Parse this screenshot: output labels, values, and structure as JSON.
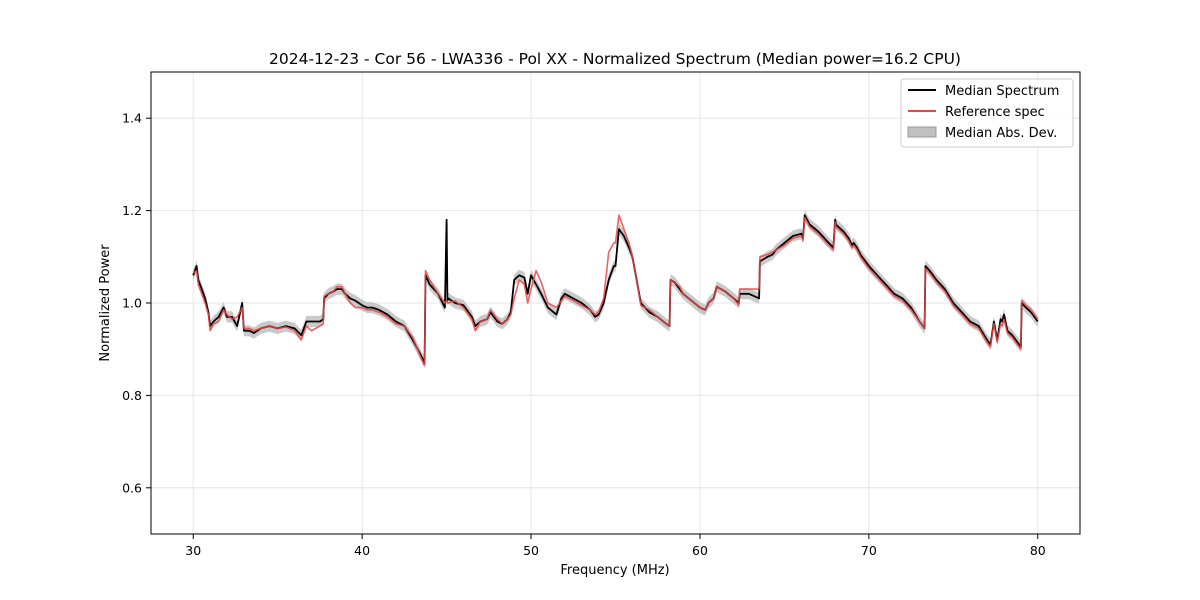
{
  "chart_data": {
    "type": "line",
    "title": "2024-12-23 - Cor 56 - LWA336 - Pol XX - Normalized Spectrum (Median power=16.2 CPU)",
    "xlabel": "Frequency (MHz)",
    "ylabel": "Normalized Power",
    "xlim": [
      27.5,
      82.5
    ],
    "ylim": [
      0.5,
      1.5
    ],
    "xticks": [
      30,
      40,
      50,
      60,
      70,
      80
    ],
    "yticks": [
      0.6,
      0.8,
      1.0,
      1.2,
      1.4
    ],
    "xtick_labels": [
      "30",
      "40",
      "50",
      "60",
      "70",
      "80"
    ],
    "ytick_labels": [
      "0.6",
      "0.8",
      "1.0",
      "1.2",
      "1.4"
    ],
    "grid": true,
    "legend_position": "top-right",
    "colors": {
      "median": "#000000",
      "reference": "#ee4444",
      "mad": "#c0c0c0"
    },
    "series": [
      {
        "name": "Median Spectrum",
        "style": "line",
        "x": [
          30.0,
          30.2,
          30.3,
          30.5,
          30.7,
          30.9,
          31.0,
          31.2,
          31.5,
          31.8,
          32.0,
          32.3,
          32.6,
          32.9,
          33.0,
          33.3,
          33.6,
          34.0,
          34.5,
          35.0,
          35.5,
          36.0,
          36.4,
          36.7,
          37.0,
          37.5,
          37.7,
          37.75,
          38.0,
          38.3,
          38.5,
          38.8,
          39.0,
          39.3,
          39.6,
          40.0,
          40.3,
          40.6,
          41.0,
          41.5,
          42.0,
          42.5,
          43.0,
          43.5,
          43.7,
          43.75,
          44.0,
          44.5,
          44.9,
          45.0,
          45.05,
          45.1,
          45.5,
          46.0,
          46.5,
          46.7,
          47.0,
          47.4,
          47.6,
          48.0,
          48.3,
          48.6,
          48.8,
          49.0,
          49.3,
          49.6,
          49.8,
          50.0,
          50.3,
          50.6,
          51.0,
          51.5,
          51.8,
          52.0,
          52.5,
          53.0,
          53.5,
          53.8,
          54.0,
          54.3,
          54.6,
          54.9,
          55.0,
          55.2,
          55.5,
          55.8,
          56.0,
          56.3,
          56.5,
          57.0,
          57.5,
          58.0,
          58.2,
          58.25,
          58.5,
          58.8,
          59.0,
          59.5,
          60.0,
          60.3,
          60.45,
          60.5,
          60.8,
          61.0,
          61.5,
          62.0,
          62.3,
          62.35,
          62.6,
          62.9,
          63.2,
          63.5,
          63.55,
          64.0,
          64.3,
          64.5,
          65.0,
          65.5,
          66.0,
          66.1,
          66.2,
          66.5,
          67.0,
          67.5,
          67.9,
          68.0,
          68.05,
          68.5,
          68.8,
          69.0,
          69.1,
          69.3,
          69.5,
          70.0,
          70.5,
          71.0,
          71.5,
          72.0,
          72.5,
          73.0,
          73.3,
          73.35,
          73.6,
          74.0,
          74.5,
          75.0,
          75.5,
          76.0,
          76.5,
          77.0,
          77.2,
          77.4,
          77.6,
          77.8,
          77.9,
          78.0,
          78.2,
          78.5,
          78.8,
          79.0,
          79.05,
          79.3,
          79.6,
          80.0
        ],
        "y": [
          1.06,
          1.08,
          1.05,
          1.03,
          1.01,
          0.98,
          0.95,
          0.96,
          0.97,
          0.99,
          0.97,
          0.97,
          0.95,
          1.0,
          0.94,
          0.94,
          0.935,
          0.945,
          0.95,
          0.945,
          0.95,
          0.945,
          0.93,
          0.96,
          0.96,
          0.96,
          0.965,
          1.01,
          1.02,
          1.025,
          1.03,
          1.03,
          1.02,
          1.01,
          1.005,
          0.995,
          0.99,
          0.99,
          0.985,
          0.975,
          0.96,
          0.95,
          0.92,
          0.885,
          0.87,
          1.06,
          1.04,
          1.02,
          0.99,
          1.18,
          1.005,
          1.01,
          1.0,
          0.995,
          0.97,
          0.95,
          0.96,
          0.965,
          0.98,
          0.96,
          0.955,
          0.965,
          0.98,
          1.05,
          1.06,
          1.055,
          1.02,
          1.06,
          1.04,
          1.02,
          0.99,
          0.975,
          1.01,
          1.02,
          1.01,
          1.0,
          0.985,
          0.97,
          0.975,
          1.0,
          1.05,
          1.08,
          1.08,
          1.16,
          1.145,
          1.12,
          1.1,
          1.04,
          1.0,
          0.98,
          0.97,
          0.955,
          0.95,
          1.05,
          1.045,
          1.03,
          1.02,
          1.005,
          0.99,
          0.985,
          0.995,
          1.0,
          1.01,
          1.035,
          1.025,
          1.01,
          1.0,
          1.02,
          1.02,
          1.02,
          1.015,
          1.01,
          1.09,
          1.1,
          1.105,
          1.115,
          1.13,
          1.145,
          1.15,
          1.14,
          1.19,
          1.17,
          1.155,
          1.135,
          1.12,
          1.18,
          1.17,
          1.155,
          1.14,
          1.125,
          1.13,
          1.12,
          1.105,
          1.08,
          1.06,
          1.04,
          1.02,
          1.01,
          0.99,
          0.96,
          0.945,
          1.08,
          1.07,
          1.05,
          1.03,
          1.0,
          0.98,
          0.96,
          0.95,
          0.92,
          0.91,
          0.96,
          0.92,
          0.965,
          0.96,
          0.975,
          0.94,
          0.93,
          0.915,
          0.905,
          1.0,
          0.99,
          0.98,
          0.96
        ]
      },
      {
        "name": "Reference spec",
        "style": "line",
        "x": [
          30.0,
          30.2,
          30.3,
          30.5,
          30.7,
          30.9,
          31.0,
          31.2,
          31.5,
          31.8,
          32.0,
          32.3,
          32.6,
          32.9,
          33.0,
          33.3,
          33.6,
          34.0,
          34.5,
          35.0,
          35.5,
          36.0,
          36.4,
          36.7,
          37.0,
          37.5,
          37.7,
          37.75,
          38.0,
          38.3,
          38.5,
          38.8,
          39.0,
          39.3,
          39.6,
          40.0,
          40.3,
          40.6,
          41.0,
          41.5,
          42.0,
          42.5,
          43.0,
          43.5,
          43.7,
          43.75,
          44.0,
          44.5,
          44.9,
          45.0,
          45.05,
          45.1,
          45.5,
          46.0,
          46.5,
          46.7,
          47.0,
          47.4,
          47.6,
          48.0,
          48.3,
          48.6,
          48.8,
          49.0,
          49.3,
          49.6,
          49.8,
          50.0,
          50.3,
          50.6,
          51.0,
          51.5,
          51.8,
          52.0,
          52.5,
          53.0,
          53.5,
          53.8,
          54.0,
          54.3,
          54.6,
          54.9,
          55.0,
          55.2,
          55.5,
          55.8,
          56.0,
          56.3,
          56.5,
          57.0,
          57.5,
          58.0,
          58.2,
          58.25,
          58.5,
          58.8,
          59.0,
          59.5,
          60.0,
          60.3,
          60.45,
          60.5,
          60.8,
          61.0,
          61.5,
          62.0,
          62.3,
          62.35,
          62.6,
          62.9,
          63.2,
          63.5,
          63.55,
          64.0,
          64.3,
          64.5,
          65.0,
          65.5,
          66.0,
          66.1,
          66.2,
          66.5,
          67.0,
          67.5,
          67.9,
          68.0,
          68.05,
          68.5,
          68.8,
          69.0,
          69.1,
          69.3,
          69.5,
          70.0,
          70.5,
          71.0,
          71.5,
          72.0,
          72.5,
          73.0,
          73.3,
          73.35,
          73.6,
          74.0,
          74.5,
          75.0,
          75.5,
          76.0,
          76.5,
          77.0,
          77.2,
          77.4,
          77.6,
          77.8,
          77.9,
          78.0,
          78.2,
          78.5,
          78.8,
          79.0,
          79.05,
          79.3,
          79.6,
          80.0
        ],
        "y": [
          1.065,
          1.07,
          1.04,
          1.02,
          1.0,
          0.975,
          0.94,
          0.955,
          0.96,
          0.985,
          0.975,
          0.965,
          0.97,
          0.99,
          0.945,
          0.945,
          0.94,
          0.945,
          0.95,
          0.945,
          0.948,
          0.94,
          0.92,
          0.95,
          0.94,
          0.95,
          0.955,
          1.015,
          1.02,
          1.025,
          1.035,
          1.035,
          1.02,
          1.0,
          0.99,
          0.99,
          0.985,
          0.985,
          0.98,
          0.97,
          0.955,
          0.95,
          0.925,
          0.88,
          0.865,
          1.07,
          1.05,
          1.02,
          1.0,
          1.005,
          1.0,
          1.0,
          1.005,
          0.99,
          0.965,
          0.94,
          0.96,
          0.965,
          0.985,
          0.965,
          0.955,
          0.965,
          0.975,
          1.01,
          1.05,
          1.04,
          1.0,
          1.03,
          1.07,
          1.045,
          1.0,
          0.99,
          1.005,
          1.015,
          1.005,
          0.995,
          0.985,
          0.975,
          0.98,
          1.01,
          1.11,
          1.13,
          1.13,
          1.19,
          1.16,
          1.13,
          1.1,
          1.04,
          0.995,
          0.985,
          0.97,
          0.955,
          0.95,
          1.05,
          1.045,
          1.035,
          1.02,
          1.005,
          0.99,
          0.985,
          0.995,
          1.0,
          1.01,
          1.035,
          1.025,
          1.01,
          0.995,
          1.03,
          1.03,
          1.03,
          1.03,
          1.03,
          1.1,
          1.105,
          1.11,
          1.115,
          1.125,
          1.14,
          1.145,
          1.135,
          1.185,
          1.165,
          1.15,
          1.13,
          1.115,
          1.175,
          1.165,
          1.15,
          1.135,
          1.12,
          1.125,
          1.115,
          1.1,
          1.075,
          1.055,
          1.035,
          1.015,
          1.005,
          0.985,
          0.96,
          0.945,
          1.075,
          1.065,
          1.045,
          1.025,
          0.995,
          0.975,
          0.955,
          0.945,
          0.915,
          0.905,
          0.955,
          0.915,
          0.955,
          0.95,
          0.965,
          0.935,
          0.925,
          0.91,
          0.9,
          1.005,
          0.995,
          0.985,
          0.965
        ]
      },
      {
        "name": "Median Abs. Dev.",
        "style": "band",
        "half_width": 0.012
      }
    ]
  }
}
